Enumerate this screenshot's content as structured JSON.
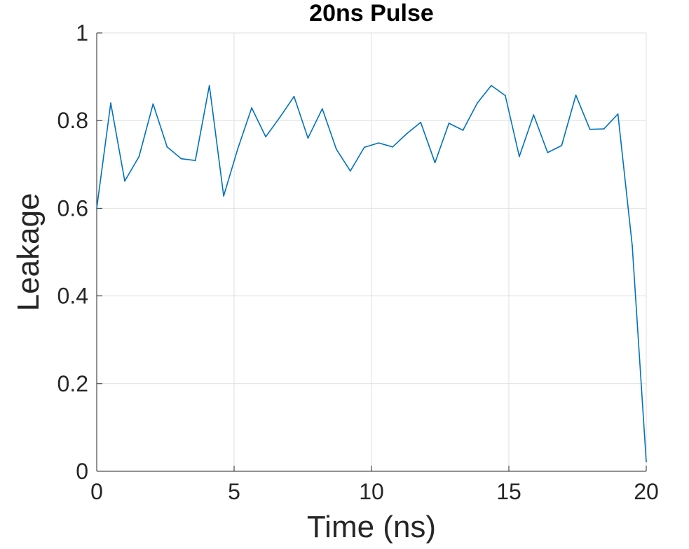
{
  "chart_data": {
    "type": "line",
    "title": "20ns Pulse",
    "xlabel": "Time (ns)",
    "ylabel": "Leakage",
    "xlim": [
      0,
      20
    ],
    "ylim": [
      0,
      1
    ],
    "xticks": [
      "0",
      "5",
      "10",
      "15",
      "20"
    ],
    "yticks": [
      "0",
      "0.2",
      "0.4",
      "0.6",
      "0.8",
      "1"
    ],
    "grid": true,
    "series": [
      {
        "color": "#0072bd",
        "x": [
          0,
          0.51,
          1.02,
          1.54,
          2.05,
          2.56,
          3.08,
          3.59,
          4.1,
          4.62,
          5.13,
          5.64,
          6.15,
          6.67,
          7.18,
          7.69,
          8.21,
          8.72,
          9.23,
          9.74,
          10.26,
          10.77,
          11.28,
          11.79,
          12.31,
          12.82,
          13.33,
          13.85,
          14.36,
          14.87,
          15.38,
          15.9,
          16.41,
          16.92,
          17.44,
          17.95,
          18.46,
          18.97,
          19.49,
          20
        ],
        "y": [
          0.6,
          0.84,
          0.662,
          0.718,
          0.838,
          0.74,
          0.713,
          0.709,
          0.88,
          0.628,
          0.735,
          0.829,
          0.763,
          0.808,
          0.855,
          0.76,
          0.827,
          0.735,
          0.685,
          0.739,
          0.749,
          0.74,
          0.77,
          0.796,
          0.704,
          0.794,
          0.778,
          0.84,
          0.88,
          0.857,
          0.718,
          0.813,
          0.727,
          0.743,
          0.858,
          0.78,
          0.781,
          0.815,
          0.515,
          0.022
        ]
      }
    ]
  }
}
